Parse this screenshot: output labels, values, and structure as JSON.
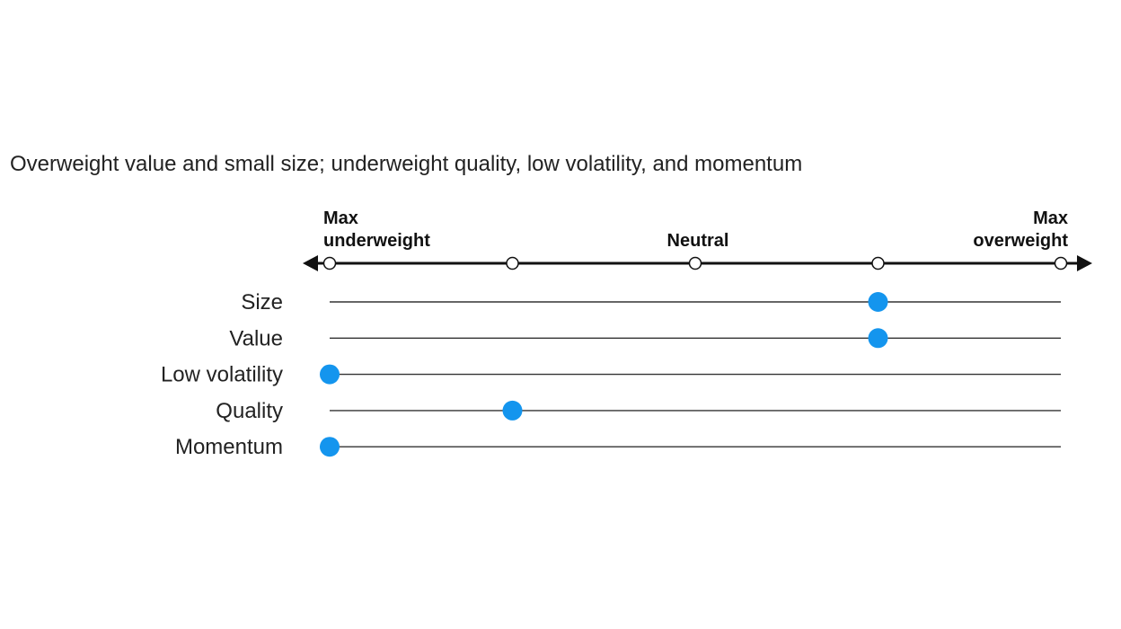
{
  "chart_data": {
    "type": "dot-scale",
    "subtitle": "Overweight value and small size; underweight quality, low volatility, and momentum",
    "scale": {
      "positions": [
        -2,
        -1,
        0,
        1,
        2
      ],
      "range": [
        -2,
        2
      ],
      "labels": [
        {
          "value": -2,
          "lines": [
            "Max",
            "underweight"
          ],
          "align": "start"
        },
        {
          "value": 0,
          "lines": [
            "Neutral"
          ],
          "align": "middle"
        },
        {
          "value": 2,
          "lines": [
            "Max",
            "overweight"
          ],
          "align": "end"
        }
      ]
    },
    "factors": [
      {
        "name": "Size",
        "value": 1
      },
      {
        "name": "Value",
        "value": 1
      },
      {
        "name": "Low volatility",
        "value": -2
      },
      {
        "name": "Quality",
        "value": -1
      },
      {
        "name": "Momentum",
        "value": -2
      }
    ],
    "colors": {
      "marker": "#1495ee",
      "axis": "#111111",
      "track": "#333333",
      "tick_fill": "#ffffff"
    }
  }
}
